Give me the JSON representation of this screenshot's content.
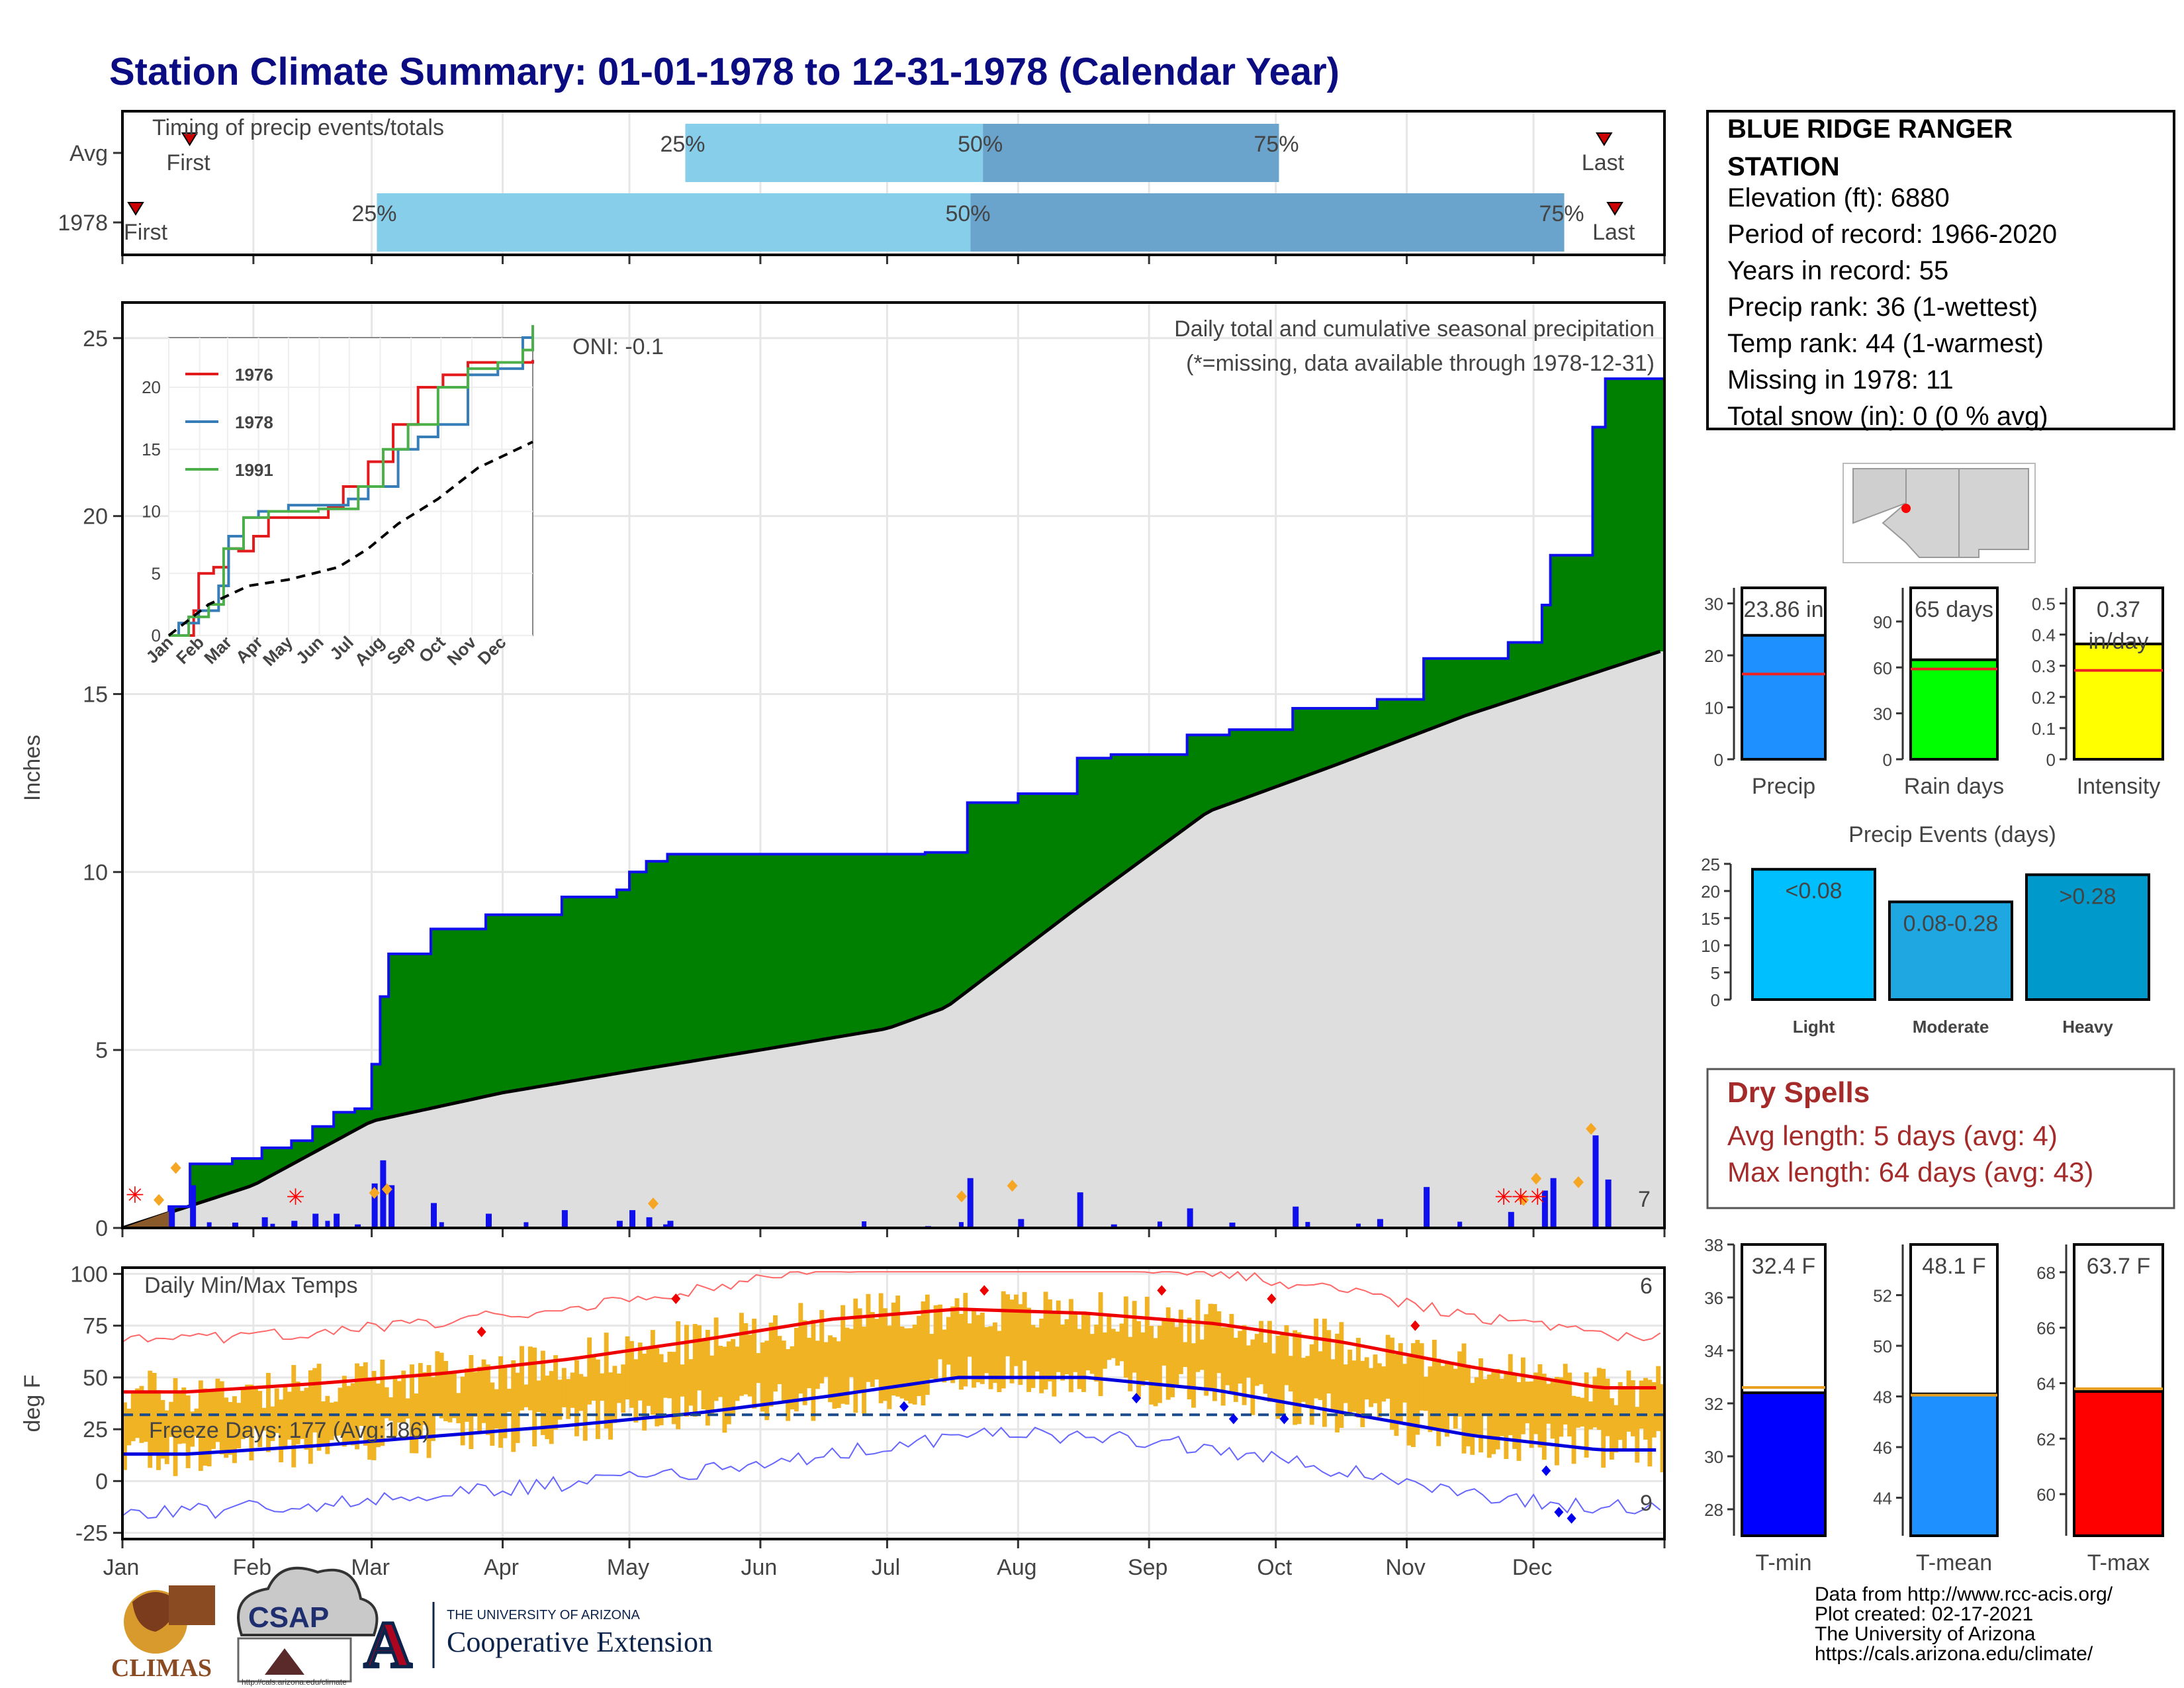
{
  "title": "Station Climate Summary: 01-01-1978 to 12-31-1978 (Calendar Year)",
  "timing": {
    "label": "Timing of precip events/totals",
    "rows": [
      {
        "name": "Avg",
        "first": 0.035,
        "q25": 0.365,
        "q50": 0.558,
        "q75": 0.75,
        "last": 0.963,
        "first_label": "First",
        "last_label": "Last",
        "q25_label": "25%",
        "q50_label": "50%",
        "q75_label": "75%"
      },
      {
        "name": "1978",
        "first": 0.0,
        "q25": 0.165,
        "q50": 0.55,
        "q75": 0.935,
        "last": 0.97,
        "first_label": "First",
        "last_label": "Last",
        "q25_label": "25%",
        "q50_label": "50%",
        "q75_label": "75%"
      }
    ],
    "colors": {
      "light": "#87ceeb",
      "dark": "#6aa4cc",
      "marker": "#cc0000"
    }
  },
  "station": {
    "name_line1": "BLUE RIDGE RANGER",
    "name_line2": "STATION",
    "elevation": "Elevation (ft): 6880",
    "period": "Period of record: 1966-2020",
    "years": "Years in record: 55",
    "precip_rank": "Precip rank: 36 (1-wettest)",
    "temp_rank": "Temp rank: 44 (1-warmest)",
    "missing": "Missing in 1978: 11",
    "snow": "Total snow (in): 0 (0 % avg)"
  },
  "precip_panel": {
    "ylabel": "Inches",
    "subtitle": "Daily total and cumulative seasonal precipitation",
    "note": "(*=missing, data available through 1978-12-31)",
    "oni": "ONI: -0.1",
    "extreme_count": "7",
    "ylim": [
      0,
      26
    ],
    "yticks": [
      0,
      5,
      10,
      15,
      20,
      25
    ]
  },
  "month_labels": [
    "Jan",
    "Feb",
    "Mar",
    "Apr",
    "May",
    "Jun",
    "Jul",
    "Aug",
    "Sep",
    "Oct",
    "Nov",
    "Dec"
  ],
  "inset": {
    "series": [
      {
        "name": "1976",
        "color": "#e31a1c"
      },
      {
        "name": "1978",
        "color": "#377eb8"
      },
      {
        "name": "1991",
        "color": "#4daf4a"
      }
    ],
    "yticks": [
      0,
      5,
      10,
      15,
      20
    ],
    "month_labels": [
      "Jan",
      "Feb",
      "Mar",
      "Apr",
      "May",
      "Jun",
      "Jul",
      "Aug",
      "Sep",
      "Oct",
      "Nov",
      "Dec"
    ]
  },
  "temp_panel": {
    "ylabel": "deg F",
    "label": "Daily Min/Max Temps",
    "freeze": "Freeze Days: 177 (Avg:186)",
    "hot_count": "6",
    "cold_count": "9",
    "ylim": [
      -28,
      103
    ],
    "yticks": [
      -25,
      0,
      25,
      50,
      75,
      100
    ],
    "freeze_line": 32
  },
  "chart_data": [
    {
      "type": "area",
      "title": "Daily total and cumulative seasonal precipitation",
      "ylabel": "Inches",
      "ylim": [
        0,
        26
      ],
      "series": [
        {
          "name": "1978 cumulative",
          "x": [
            "01-01",
            "01-12",
            "01-17",
            "01-27",
            "02-03",
            "02-10",
            "02-15",
            "02-20",
            "02-25",
            "03-01",
            "03-03",
            "03-05",
            "03-15",
            "03-28",
            "04-15",
            "04-28",
            "05-01",
            "05-05",
            "05-10",
            "07-10",
            "07-20",
            "08-01",
            "08-15",
            "08-23",
            "09-10",
            "09-20",
            "10-05",
            "10-25",
            "11-05",
            "11-25",
            "12-03",
            "12-05",
            "12-15",
            "12-18"
          ],
          "values": [
            0,
            0.6,
            1.8,
            1.95,
            2.25,
            2.45,
            2.85,
            3.25,
            3.35,
            4.6,
            6.5,
            7.7,
            8.4,
            8.8,
            9.3,
            9.5,
            10.0,
            10.3,
            10.5,
            10.55,
            11.95,
            12.2,
            13.2,
            13.3,
            13.85,
            14.0,
            14.6,
            14.85,
            16.0,
            16.45,
            17.5,
            18.9,
            22.5,
            23.86
          ]
        },
        {
          "name": "Average cumulative",
          "x": [
            "01-01",
            "02-01",
            "03-01",
            "04-01",
            "05-01",
            "06-01",
            "07-01",
            "07-15",
            "08-15",
            "09-15",
            "10-15",
            "11-15",
            "12-31"
          ],
          "values": [
            0,
            1.2,
            3.0,
            3.8,
            4.4,
            5.0,
            5.6,
            6.2,
            9.0,
            11.7,
            13.0,
            14.4,
            16.2
          ]
        }
      ],
      "daily_highlights_in": [
        0.6,
        1.5,
        0.8,
        0.9,
        0.5,
        0.7,
        1.0,
        0.6,
        1.2,
        1.1,
        2.6
      ]
    },
    {
      "type": "line",
      "title": "Daily Min/Max Temps",
      "ylabel": "deg F",
      "ylim": [
        -28,
        103
      ],
      "series": [
        {
          "name": "Avg max",
          "x": [
            "Jan",
            "Feb",
            "Mar",
            "Apr",
            "May",
            "Jun",
            "Jul",
            "Aug",
            "Sep",
            "Oct",
            "Nov",
            "Dec"
          ],
          "values": [
            43,
            47,
            52,
            59,
            68,
            78,
            83,
            81,
            76,
            67,
            55,
            45
          ]
        },
        {
          "name": "Avg min",
          "x": [
            "Jan",
            "Feb",
            "Mar",
            "Apr",
            "May",
            "Jun",
            "Jul",
            "Aug",
            "Sep",
            "Oct",
            "Nov",
            "Dec"
          ],
          "values": [
            13,
            17,
            22,
            27,
            33,
            41,
            50,
            50,
            44,
            33,
            22,
            15
          ]
        }
      ],
      "freeze_threshold": 32
    },
    {
      "type": "bar",
      "title": "Precip",
      "categories": [
        "Precip"
      ],
      "values": [
        23.86
      ],
      "average": 16.4,
      "value_label": "23.86 in",
      "ylim": [
        0,
        33
      ],
      "yticks": [
        0,
        10,
        20,
        30
      ],
      "color": "#1e90ff"
    },
    {
      "type": "bar",
      "title": "Rain days",
      "categories": [
        "Rain days"
      ],
      "values": [
        65
      ],
      "average": 59,
      "value_label": "65 days",
      "ylim": [
        0,
        112
      ],
      "yticks": [
        0,
        30,
        60,
        90
      ],
      "color": "#00ff00"
    },
    {
      "type": "bar",
      "title": "Intensity",
      "categories": [
        "Intensity"
      ],
      "values": [
        0.37
      ],
      "average": 0.285,
      "value_label": "0.37",
      "value_label2": "in/day",
      "ylim": [
        0,
        0.55
      ],
      "yticks": [
        0.0,
        0.1,
        0.2,
        0.3,
        0.4,
        0.5
      ],
      "color": "#ffff00"
    },
    {
      "type": "bar",
      "title": "Precip Events (days)",
      "categories": [
        "Light",
        "Moderate",
        "Heavy"
      ],
      "values": [
        24,
        18,
        23
      ],
      "bar_labels": [
        "<0.08",
        "0.08-0.28",
        ">0.28"
      ],
      "ylim": [
        0,
        25
      ],
      "yticks": [
        0,
        5,
        10,
        15,
        20,
        25
      ],
      "colors": [
        "#00bfff",
        "#1ea7e0",
        "#0099cc"
      ]
    },
    {
      "type": "bar",
      "title": "T-min",
      "categories": [
        "T-min"
      ],
      "values": [
        32.4
      ],
      "average": 32.6,
      "value_label": "32.4 F",
      "ylim": [
        27,
        38
      ],
      "yticks": [
        28,
        30,
        32,
        34,
        36,
        38
      ],
      "color": "#0000ff"
    },
    {
      "type": "bar",
      "title": "T-mean",
      "categories": [
        "T-mean"
      ],
      "values": [
        48.1
      ],
      "average": 48.05,
      "value_label": "48.1 F",
      "ylim": [
        42.5,
        54
      ],
      "yticks": [
        44,
        46,
        48,
        50,
        52
      ],
      "color": "#1e90ff"
    },
    {
      "type": "bar",
      "title": "T-max",
      "categories": [
        "T-max"
      ],
      "values": [
        63.7
      ],
      "average": 63.8,
      "value_label": "63.7 F",
      "ylim": [
        58.5,
        69
      ],
      "yticks": [
        60,
        62,
        64,
        66,
        68
      ],
      "color": "#ff0000"
    }
  ],
  "dry_spells": {
    "title": "Dry Spells",
    "avg": "Avg length: 5 days (avg: 4)",
    "max": "Max length: 64 days (avg: 43)"
  },
  "logos": {
    "climas": "CLIMAS",
    "csap": "CSAP",
    "csap_url": "http://cals.arizona.edu/climate",
    "ua_line1": "THE UNIVERSITY OF ARIZONA",
    "ua_line2": "Cooperative Extension",
    "ua_letter": "A"
  },
  "footer": {
    "line1": "Data from http://www.rcc-acis.org/",
    "line2": "Plot created: 02-17-2021",
    "line3": "The University of Arizona",
    "line4": "https://cals.arizona.edu/climate/"
  }
}
